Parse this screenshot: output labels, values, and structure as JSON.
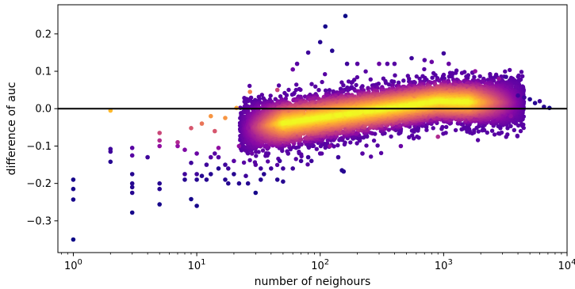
{
  "chart_data": {
    "type": "scatter",
    "title": "",
    "xlabel": "number of neighours",
    "ylabel": "difference of auc",
    "xscale": "log",
    "xlim": [
      0.75,
      10000
    ],
    "ylim": [
      -0.385,
      0.278
    ],
    "grid": false,
    "reference_line": {
      "y": 0.0,
      "color": "#000000"
    },
    "colormap": "plasma (density)",
    "x_ticks": [
      {
        "value": 1,
        "base": "10",
        "exp": "0"
      },
      {
        "value": 10,
        "base": "10",
        "exp": "1"
      },
      {
        "value": 100,
        "base": "10",
        "exp": "2"
      },
      {
        "value": 1000,
        "base": "10",
        "exp": "3"
      },
      {
        "value": 10000,
        "base": "10",
        "exp": "4"
      }
    ],
    "y_ticks": [
      {
        "value": 0.2,
        "label": "0.2"
      },
      {
        "value": 0.1,
        "label": "0.1"
      },
      {
        "value": 0.0,
        "label": "0.0"
      },
      {
        "value": -0.1,
        "label": "−0.1"
      },
      {
        "value": -0.2,
        "label": "−0.2"
      },
      {
        "value": -0.3,
        "label": "−0.3"
      }
    ],
    "points": [
      [
        1,
        -0.35,
        0.0
      ],
      [
        1,
        -0.243,
        0.02
      ],
      [
        1,
        -0.215,
        0.02
      ],
      [
        1,
        -0.19,
        0.02
      ],
      [
        2,
        -0.005,
        0.85
      ],
      [
        2,
        -0.142,
        0.05
      ],
      [
        2,
        -0.115,
        0.1
      ],
      [
        2,
        -0.108,
        0.1
      ],
      [
        3,
        -0.278,
        0.02
      ],
      [
        3,
        -0.225,
        0.05
      ],
      [
        3,
        -0.21,
        0.05
      ],
      [
        3,
        -0.2,
        0.05
      ],
      [
        3,
        -0.175,
        0.05
      ],
      [
        3,
        -0.125,
        0.15
      ],
      [
        3,
        -0.105,
        0.15
      ],
      [
        4,
        -0.13,
        0.1
      ],
      [
        5,
        -0.256,
        0.02
      ],
      [
        5,
        -0.215,
        0.05
      ],
      [
        5,
        -0.2,
        0.05
      ],
      [
        5,
        -0.1,
        0.3
      ],
      [
        5,
        -0.085,
        0.4
      ],
      [
        5,
        -0.065,
        0.5
      ],
      [
        7,
        -0.09,
        0.4
      ],
      [
        7,
        -0.1,
        0.3
      ],
      [
        8,
        -0.175,
        0.1
      ],
      [
        8,
        -0.19,
        0.05
      ],
      [
        8,
        -0.11,
        0.25
      ],
      [
        9,
        -0.052,
        0.55
      ],
      [
        9,
        -0.242,
        0.02
      ],
      [
        9,
        -0.145,
        0.1
      ],
      [
        10,
        -0.26,
        0.02
      ],
      [
        10,
        -0.19,
        0.05
      ],
      [
        10,
        -0.12,
        0.2
      ],
      [
        10,
        -0.175,
        0.1
      ],
      [
        11,
        -0.04,
        0.65
      ],
      [
        11,
        -0.18,
        0.05
      ],
      [
        12,
        -0.15,
        0.1
      ],
      [
        12,
        -0.19,
        0.05
      ],
      [
        13,
        -0.02,
        0.75
      ],
      [
        13,
        -0.13,
        0.15
      ],
      [
        13,
        -0.175,
        0.05
      ],
      [
        14,
        -0.06,
        0.55
      ],
      [
        14,
        -0.12,
        0.15
      ],
      [
        15,
        -0.16,
        0.05
      ],
      [
        15,
        -0.105,
        0.3
      ],
      [
        15,
        -0.13,
        0.15
      ],
      [
        17,
        -0.19,
        0.05
      ],
      [
        17,
        -0.15,
        0.1
      ],
      [
        17,
        -0.025,
        0.75
      ],
      [
        18,
        -0.2,
        0.05
      ],
      [
        18,
        -0.16,
        0.1
      ],
      [
        20,
        -0.175,
        0.05
      ],
      [
        20,
        -0.14,
        0.15
      ],
      [
        21,
        0.002,
        0.8
      ],
      [
        22,
        -0.2,
        0.05
      ],
      [
        22,
        -0.1,
        0.3
      ],
      [
        25,
        -0.18,
        0.1
      ],
      [
        26,
        -0.2,
        0.05
      ],
      [
        27,
        0.045,
        0.7
      ],
      [
        28,
        -0.12,
        0.2
      ],
      [
        30,
        -0.225,
        0.02
      ],
      [
        30,
        -0.15,
        0.15
      ],
      [
        33,
        -0.19,
        0.05
      ],
      [
        33,
        -0.16,
        0.1
      ],
      [
        35,
        -0.175,
        0.05
      ],
      [
        38,
        -0.12,
        0.15
      ],
      [
        40,
        -0.16,
        0.1
      ],
      [
        45,
        0.05,
        0.5
      ],
      [
        45,
        -0.19,
        0.05
      ],
      [
        47,
        -0.14,
        0.1
      ],
      [
        50,
        -0.195,
        0.05
      ],
      [
        50,
        -0.16,
        0.1
      ],
      [
        55,
        -0.12,
        0.15
      ],
      [
        60,
        0.105,
        0.2
      ],
      [
        60,
        -0.16,
        0.1
      ],
      [
        65,
        0.12,
        0.15
      ],
      [
        70,
        -0.14,
        0.1
      ],
      [
        80,
        -0.13,
        0.1
      ],
      [
        80,
        0.15,
        0.1
      ],
      [
        85,
        -0.14,
        0.1
      ],
      [
        100,
        0.178,
        0.05
      ],
      [
        100,
        -0.12,
        0.15
      ],
      [
        110,
        0.22,
        0.02
      ],
      [
        120,
        -0.1,
        0.3
      ],
      [
        125,
        0.155,
        0.05
      ],
      [
        140,
        -0.13,
        0.1
      ],
      [
        150,
        -0.165,
        0.05
      ],
      [
        155,
        -0.168,
        0.05
      ],
      [
        160,
        0.248,
        0.0
      ],
      [
        165,
        0.12,
        0.1
      ],
      [
        200,
        0.12,
        0.15
      ],
      [
        220,
        -0.12,
        0.15
      ],
      [
        300,
        0.12,
        0.2
      ],
      [
        350,
        0.12,
        0.15
      ],
      [
        400,
        0.12,
        0.15
      ],
      [
        450,
        -0.1,
        0.2
      ],
      [
        550,
        0.135,
        0.1
      ],
      [
        700,
        0.13,
        0.15
      ],
      [
        800,
        0.125,
        0.2
      ],
      [
        900,
        -0.075,
        0.4
      ],
      [
        1000,
        0.148,
        0.1
      ],
      [
        1100,
        0.12,
        0.2
      ],
      [
        1800,
        0.1,
        0.3
      ],
      [
        2800,
        0.08,
        0.3
      ],
      [
        3200,
        0.085,
        0.1
      ],
      [
        3500,
        -0.02,
        0.3
      ],
      [
        4000,
        0.035,
        0.1
      ],
      [
        4500,
        0.03,
        0.1
      ],
      [
        5000,
        0.025,
        0.05
      ],
      [
        5500,
        0.015,
        0.05
      ],
      [
        6000,
        0.02,
        0.1
      ],
      [
        6500,
        0.005,
        0.05
      ],
      [
        7200,
        0.002,
        0.02
      ]
    ],
    "cloud_bands": [
      {
        "lx0": 1.35,
        "lx1": 2.95,
        "center": [
          -0.055,
          0.02
        ],
        "spread": [
          0.06,
          0.05
        ],
        "count": 5200
      },
      {
        "lx0": 2.95,
        "lx1": 3.65,
        "center": [
          0.02,
          0.015
        ],
        "spread": [
          0.05,
          0.055
        ],
        "count": 2400
      }
    ]
  }
}
